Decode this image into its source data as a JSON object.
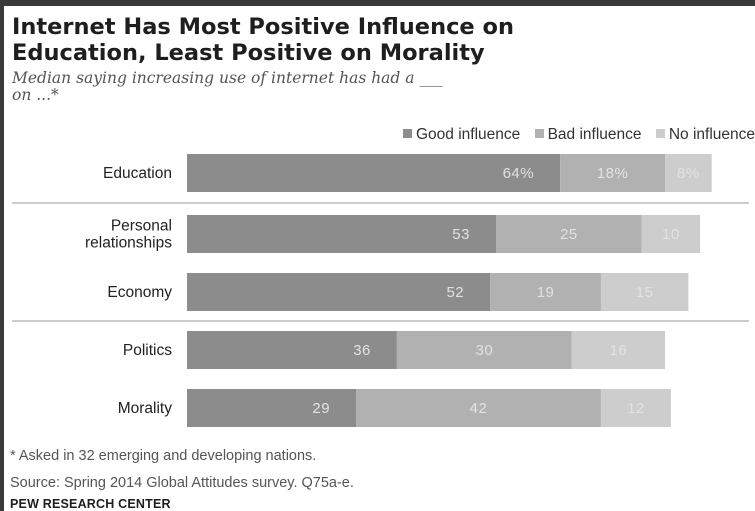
{
  "title_line1": "Internet Has Most Positive Influence on",
  "title_line2": "Education, Least Positive on Morality",
  "subtitle_line1": "Median saying increasing use of internet has had a ___",
  "subtitle_line2": "on ...*",
  "footnote": "* Asked in 32 emerging and developing nations.",
  "source": "Source: Spring 2014 Global Attitudes survey. Q75a-e.",
  "brand": "PEW RESEARCH CENTER",
  "colors": {
    "good": "#8c8c8c",
    "bad": "#b1b1b1",
    "none": "#cdcdcd",
    "label_on_bar": "#e2e2e2",
    "divider": "#9a9a9a"
  },
  "chart_data": {
    "type": "bar",
    "orientation": "horizontal",
    "stacked": true,
    "categories": [
      "Education",
      "Personal relationships",
      "Economy",
      "Politics",
      "Morality"
    ],
    "category_label_lines": [
      [
        "Education"
      ],
      [
        "Personal",
        "relationships"
      ],
      [
        "Economy"
      ],
      [
        "Politics"
      ],
      [
        "Morality"
      ]
    ],
    "series": [
      {
        "name": "Good influence",
        "values": [
          64,
          53,
          52,
          36,
          29
        ],
        "labels": [
          "64%",
          "53",
          "52",
          "36",
          "29"
        ]
      },
      {
        "name": "Bad influence",
        "values": [
          18,
          25,
          19,
          30,
          42
        ],
        "labels": [
          "18%",
          "25",
          "19",
          "30",
          "42"
        ]
      },
      {
        "name": "No influence",
        "values": [
          8,
          10,
          15,
          16,
          12
        ],
        "labels": [
          "8%",
          "10",
          "15",
          "16",
          "12"
        ]
      }
    ],
    "dividers_after_category": [
      "Education",
      "Economy"
    ],
    "legend_position": "top-right"
  }
}
